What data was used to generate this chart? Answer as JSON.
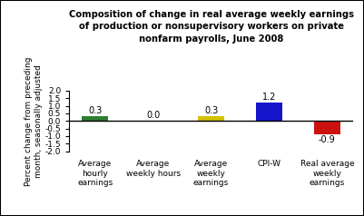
{
  "title_line1": "Composition of change in real average weekly earnings",
  "title_line2": "of production or nonsupervisory workers on private",
  "title_line3": "nonfarm payrolls, June 2008",
  "categories": [
    "Average\nhourly\nearnings",
    "Average\nweekly hours",
    "Average\nweekly\nearnings",
    "CPI-W",
    "Real average\nweekly\nearnings"
  ],
  "values": [
    0.3,
    0.0,
    0.3,
    1.2,
    -0.9
  ],
  "bar_colors": [
    "#2e7d32",
    "#d4c200",
    "#d4c200",
    "#1515cc",
    "#cc1111"
  ],
  "ylabel": "Percent change from preceding\nmonth, seasonally adjusted",
  "ylim": [
    -2.0,
    2.0
  ],
  "yticks": [
    -2.0,
    -1.5,
    -1.0,
    -0.5,
    0.0,
    0.5,
    1.0,
    1.5,
    2.0
  ],
  "bar_width": 0.45,
  "value_labels": [
    "0.3",
    "0.0",
    "0.3",
    "1.2",
    "-0.9"
  ],
  "background_color": "#ffffff",
  "title_fontsize": 7.2,
  "ylabel_fontsize": 6.5,
  "tick_fontsize": 6.5,
  "label_fontsize": 7
}
